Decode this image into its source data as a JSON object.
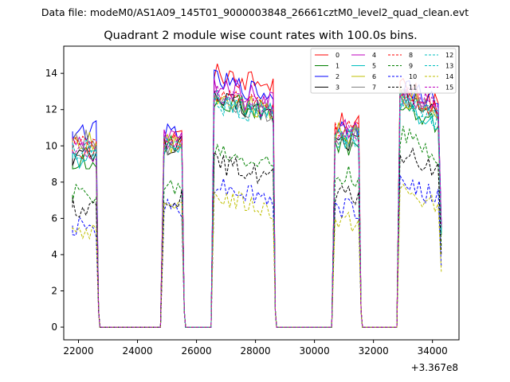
{
  "header": {
    "file_label": "Data file: modeM0/AS1A09_145T01_9000003848_26661cztM0_level2_quad_clean.evt"
  },
  "chart_data": {
    "type": "line",
    "title": "Quadrant 2 module wise count rates with 100.0s bins.",
    "xlabel": "",
    "ylabel": "",
    "x_offset_label": "+3.367e8",
    "xlim": [
      21500,
      34900
    ],
    "ylim": [
      -0.7,
      15.5
    ],
    "x_ticks": [
      22000,
      24000,
      26000,
      28000,
      30000,
      32000,
      34000
    ],
    "x_tick_labels": [
      "22000",
      "24000",
      "26000",
      "28000",
      "30000",
      "32000",
      "34000"
    ],
    "y_ticks": [
      0,
      2,
      4,
      6,
      8,
      10,
      12,
      14
    ],
    "y_tick_labels": [
      "0",
      "2",
      "4",
      "6",
      "8",
      "10",
      "12",
      "14"
    ],
    "legend_position": "top-right",
    "segments": [
      {
        "start": 21800,
        "end": 22600,
        "bins": 8
      },
      {
        "start": 24900,
        "end": 25500,
        "bins": 6
      },
      {
        "start": 26600,
        "end": 28600,
        "bins": 20
      },
      {
        "start": 30700,
        "end": 31500,
        "bins": 8
      },
      {
        "start": 32900,
        "end": 34300,
        "bins": 14
      }
    ],
    "series": [
      {
        "name": "0",
        "color": "#ff0000",
        "dash": "solid",
        "levels": [
          9.8,
          10.5,
          13.5,
          11.3,
          12.5
        ]
      },
      {
        "name": "1",
        "color": "#008000",
        "dash": "solid",
        "levels": [
          9.0,
          10.0,
          12.0,
          10.0,
          11.3
        ]
      },
      {
        "name": "2",
        "color": "#0000ff",
        "dash": "solid",
        "levels": [
          10.8,
          10.8,
          13.0,
          11.0,
          12.6
        ]
      },
      {
        "name": "3",
        "color": "#000000",
        "dash": "solid",
        "levels": [
          9.5,
          10.0,
          12.0,
          10.3,
          12.0
        ]
      },
      {
        "name": "4",
        "color": "#bf00bf",
        "dash": "solid",
        "levels": [
          10.0,
          10.5,
          12.8,
          11.0,
          12.0
        ]
      },
      {
        "name": "5",
        "color": "#00bfbf",
        "dash": "solid",
        "levels": [
          9.3,
          10.2,
          12.0,
          10.5,
          11.5
        ]
      },
      {
        "name": "6",
        "color": "#bfbf00",
        "dash": "solid",
        "levels": [
          10.2,
          10.2,
          12.2,
          10.7,
          12.0
        ]
      },
      {
        "name": "7",
        "color": "#808080",
        "dash": "solid",
        "levels": [
          10.3,
          10.0,
          12.0,
          10.5,
          12.0
        ]
      },
      {
        "name": "8",
        "color": "#ff0000",
        "dash": "dashed",
        "levels": [
          10.0,
          10.4,
          12.3,
          10.8,
          12.2
        ]
      },
      {
        "name": "9",
        "color": "#008000",
        "dash": "dashed",
        "levels": [
          7.3,
          7.7,
          9.2,
          8.3,
          9.8
        ]
      },
      {
        "name": "10",
        "color": "#0000ff",
        "dash": "dashed",
        "levels": [
          5.6,
          6.6,
          7.3,
          6.5,
          7.3
        ]
      },
      {
        "name": "11",
        "color": "#000000",
        "dash": "dashed",
        "levels": [
          6.6,
          7.2,
          8.5,
          7.2,
          8.8
        ]
      },
      {
        "name": "12",
        "color": "#00bfbf",
        "dash": "dashed",
        "levels": [
          9.8,
          10.0,
          11.8,
          10.3,
          11.8
        ]
      },
      {
        "name": "13",
        "color": "#00bfbf",
        "dash": "dashed",
        "levels": [
          9.5,
          10.2,
          12.0,
          10.4,
          11.8
        ]
      },
      {
        "name": "14",
        "color": "#bfbf00",
        "dash": "dashed",
        "levels": [
          5.4,
          6.3,
          6.7,
          5.8,
          6.8
        ]
      },
      {
        "name": "15",
        "color": "#bf00bf",
        "dash": "dashed",
        "levels": [
          9.7,
          10.3,
          12.2,
          10.6,
          12.3
        ]
      }
    ]
  }
}
